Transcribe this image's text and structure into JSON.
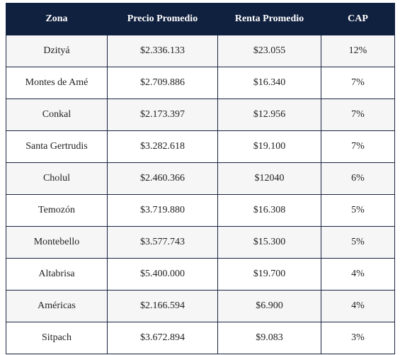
{
  "table": {
    "headers": [
      "Zona",
      "Precio Promedio",
      "Renta Promedio",
      "CAP"
    ],
    "rows": [
      [
        "Dzityá",
        "$2.336.133",
        "$23.055",
        "12%"
      ],
      [
        "Montes de Amé",
        "$2.709.886",
        "$16.340",
        "7%"
      ],
      [
        "Conkal",
        "$2.173.397",
        "$12.956",
        "7%"
      ],
      [
        "Santa Gertrudis",
        "$3.282.618",
        "$19.100",
        "7%"
      ],
      [
        "Cholul",
        "$2.460.366",
        "$12040",
        "6%"
      ],
      [
        "Temozón",
        "$3.719.880",
        "$16.308",
        "5%"
      ],
      [
        "Montebello",
        "$3.577.743",
        "$15.300",
        "5%"
      ],
      [
        "Altabrisa",
        "$5.400.000",
        "$19.700",
        "4%"
      ],
      [
        "Américas",
        "$2.166.594",
        "$6.900",
        "4%"
      ],
      [
        "Sitpach",
        "$3.672.894",
        "$9.083",
        "3%"
      ]
    ]
  },
  "colors": {
    "header_bg": "#10203f",
    "header_text": "#ffffff",
    "row_alt_bg": "#f6f6f7",
    "border": "#1a2440"
  }
}
